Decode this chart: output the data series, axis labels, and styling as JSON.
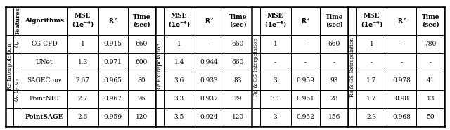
{
  "section_labels": [
    "Re Interpolation",
    "Re Extrapolation",
    "Re & GS Interpolation",
    "Re & GS Extrapolation"
  ],
  "data_rows": [
    [
      "UNet",
      "1.3",
      "0.971",
      "600",
      "1.4",
      "0.944",
      "660",
      "-",
      "-",
      "-",
      "-",
      "-",
      "-"
    ],
    [
      "SAGEConv",
      "2.67",
      "0.965",
      "80",
      "3.6",
      "0.933",
      "83",
      "3",
      "0.959",
      "93",
      "1.7",
      "0.978",
      "41"
    ],
    [
      "PointNET",
      "2.7",
      "0.967",
      "26",
      "3.3",
      "0.937",
      "29",
      "3.1",
      "0.961",
      "28",
      "1.7",
      "0.98",
      "13"
    ],
    [
      "PointSAGE",
      "2.6",
      "0.959",
      "120",
      "3.5",
      "0.924",
      "120",
      "3",
      "0.952",
      "156",
      "2.3",
      "0.968",
      "50"
    ]
  ],
  "cgcfd_s1": [
    "1",
    "0.915",
    "660"
  ],
  "cgcfd_s2": [
    "1",
    "-",
    "660"
  ],
  "cgcfd_s3": [
    "1",
    "-",
    "660"
  ],
  "cgcfd_s4": [
    "1",
    "-",
    "780"
  ],
  "bg_color": "#ffffff",
  "line_color": "#000000",
  "text_color": "#000000",
  "fs": 6.5,
  "fs_hdr": 6.5,
  "fs_rot": 5.8
}
